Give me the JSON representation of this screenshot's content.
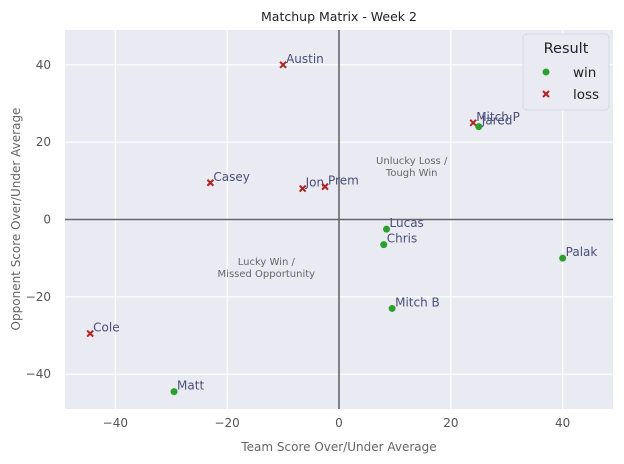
{
  "chart_data": {
    "type": "scatter",
    "title": "Matchup Matrix - Week 2",
    "xlabel": "Team Score Over/Under Average",
    "ylabel": "Opponent Score Over/Under Average",
    "xlim": [
      -49,
      49
    ],
    "ylim": [
      -49,
      49
    ],
    "x_ticks": [
      -40,
      -20,
      0,
      20,
      40
    ],
    "y_ticks": [
      -40,
      -20,
      0,
      20,
      40
    ],
    "x_tick_labels": [
      "−40",
      "−20",
      "0",
      "20",
      "40"
    ],
    "y_tick_labels": [
      "−40",
      "−20",
      "0",
      "20",
      "40"
    ],
    "grid": true,
    "reference_lines": {
      "x": 0,
      "y": 0
    },
    "legend": {
      "title": "Result",
      "placement": "top-right",
      "entries": [
        {
          "label": "win",
          "marker": "circle",
          "color": "#2ca02c"
        },
        {
          "label": "loss",
          "marker": "x",
          "color": "#b22222"
        }
      ]
    },
    "annotations": [
      {
        "lines": [
          "Unlucky Loss /",
          "Tough Win"
        ],
        "x": 13,
        "y": 13
      },
      {
        "lines": [
          "Lucky Win /",
          "Missed Opportunity"
        ],
        "x": -13,
        "y": -13
      }
    ],
    "points": [
      {
        "label": "Austin",
        "x": -10,
        "y": 40,
        "result": "loss"
      },
      {
        "label": "Mitch P",
        "x": 24,
        "y": 25,
        "result": "loss"
      },
      {
        "label": "Jared",
        "x": 25,
        "y": 24,
        "result": "win"
      },
      {
        "label": "Casey",
        "x": -23,
        "y": 9.5,
        "result": "loss"
      },
      {
        "label": "Jon",
        "x": -6.5,
        "y": 8,
        "result": "loss"
      },
      {
        "label": "Prem",
        "x": -2.5,
        "y": 8.5,
        "result": "loss"
      },
      {
        "label": "Lucas",
        "x": 8.5,
        "y": -2.5,
        "result": "win"
      },
      {
        "label": "Chris",
        "x": 8,
        "y": -6.5,
        "result": "win"
      },
      {
        "label": "Palak",
        "x": 40,
        "y": -10,
        "result": "win"
      },
      {
        "label": "Mitch B",
        "x": 9.5,
        "y": -23,
        "result": "win"
      },
      {
        "label": "Cole",
        "x": -44.5,
        "y": -29.5,
        "result": "loss"
      },
      {
        "label": "Matt",
        "x": -29.5,
        "y": -44.5,
        "result": "win"
      }
    ]
  },
  "colors": {
    "plot_background": "#eaeaf2",
    "grid": "#ffffff",
    "reference_line": "#666666",
    "win": "#2ca02c",
    "loss": "#b22222"
  }
}
